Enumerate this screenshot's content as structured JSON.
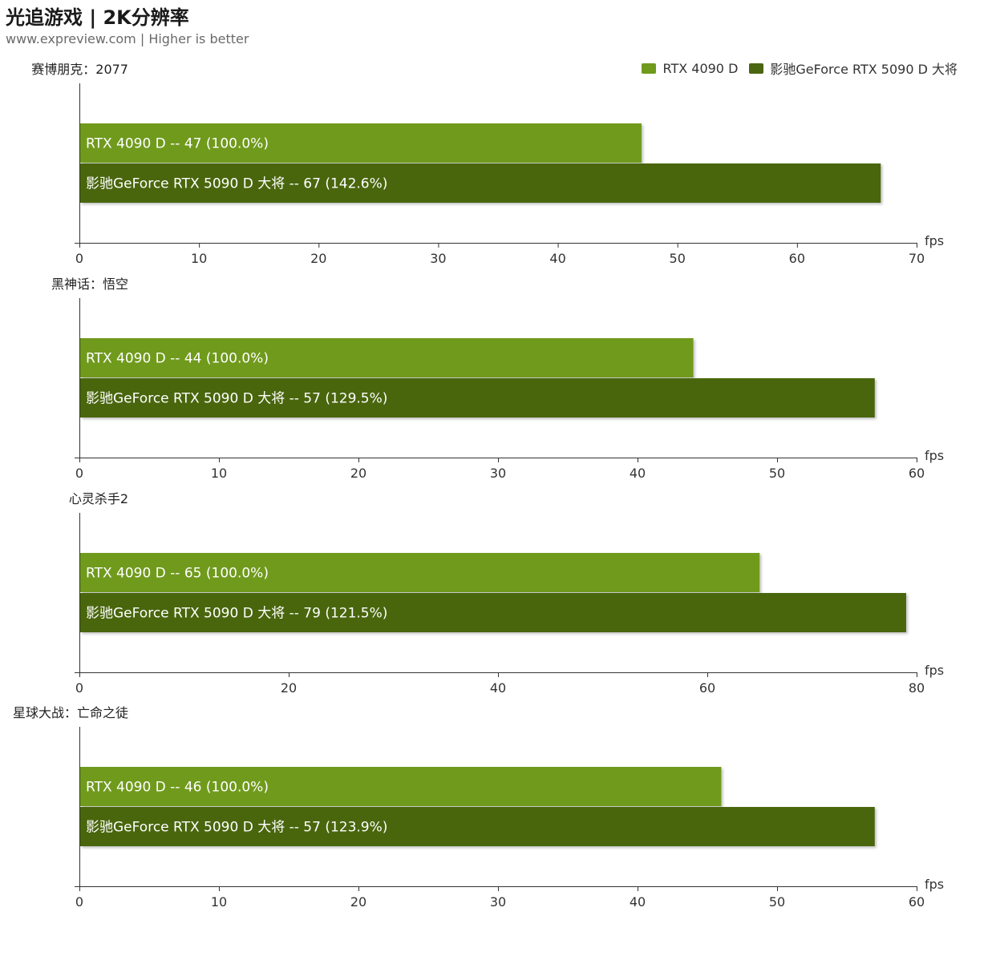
{
  "header": {
    "title": "光追游戏 | 2K分辨率",
    "subtitle": "www.expreview.com | Higher is better"
  },
  "legend": [
    {
      "name": "RTX 4090 D",
      "color": "#6f9a1c"
    },
    {
      "name": "影驰GeForce RTX 5090 D 大将",
      "color": "#4a6611"
    }
  ],
  "chart_data": [
    {
      "type": "bar",
      "orientation": "horizontal",
      "title": "赛博朋克：2077",
      "xunit": "fps",
      "xlim": [
        0,
        70
      ],
      "xticks": [
        0,
        10,
        20,
        30,
        40,
        50,
        60,
        70
      ],
      "series": [
        {
          "name": "RTX 4090 D",
          "value": 47,
          "percent": "100.0%",
          "label": "RTX 4090 D  --  47 (100.0%)"
        },
        {
          "name": "影驰GeForce RTX 5090 D 大将",
          "value": 67,
          "percent": "142.6%",
          "label": "影驰GeForce RTX 5090 D 大将  --  67 (142.6%)"
        }
      ]
    },
    {
      "type": "bar",
      "orientation": "horizontal",
      "title": "黑神话：悟空",
      "xunit": "fps",
      "xlim": [
        0,
        60
      ],
      "xticks": [
        0,
        10,
        20,
        30,
        40,
        50,
        60
      ],
      "series": [
        {
          "name": "RTX 4090 D",
          "value": 44,
          "percent": "100.0%",
          "label": "RTX 4090 D  --  44 (100.0%)"
        },
        {
          "name": "影驰GeForce RTX 5090 D 大将",
          "value": 57,
          "percent": "129.5%",
          "label": "影驰GeForce RTX 5090 D 大将  --  57 (129.5%)"
        }
      ]
    },
    {
      "type": "bar",
      "orientation": "horizontal",
      "title": "心灵杀手2",
      "xunit": "fps",
      "xlim": [
        0,
        80
      ],
      "xticks": [
        0,
        20,
        40,
        60,
        80
      ],
      "series": [
        {
          "name": "RTX 4090 D",
          "value": 65,
          "percent": "100.0%",
          "label": "RTX 4090 D  --  65 (100.0%)"
        },
        {
          "name": "影驰GeForce RTX 5090 D 大将",
          "value": 79,
          "percent": "121.5%",
          "label": "影驰GeForce RTX 5090 D 大将  --  79 (121.5%)"
        }
      ]
    },
    {
      "type": "bar",
      "orientation": "horizontal",
      "title": "星球大战：亡命之徒",
      "xunit": "fps",
      "xlim": [
        0,
        60
      ],
      "xticks": [
        0,
        10,
        20,
        30,
        40,
        50,
        60
      ],
      "series": [
        {
          "name": "RTX 4090 D",
          "value": 46,
          "percent": "100.0%",
          "label": "RTX 4090 D  --  46 (100.0%)"
        },
        {
          "name": "影驰GeForce RTX 5090 D 大将",
          "value": 57,
          "percent": "123.9%",
          "label": "影驰GeForce RTX 5090 D 大将  --  57 (123.9%)"
        }
      ]
    }
  ]
}
